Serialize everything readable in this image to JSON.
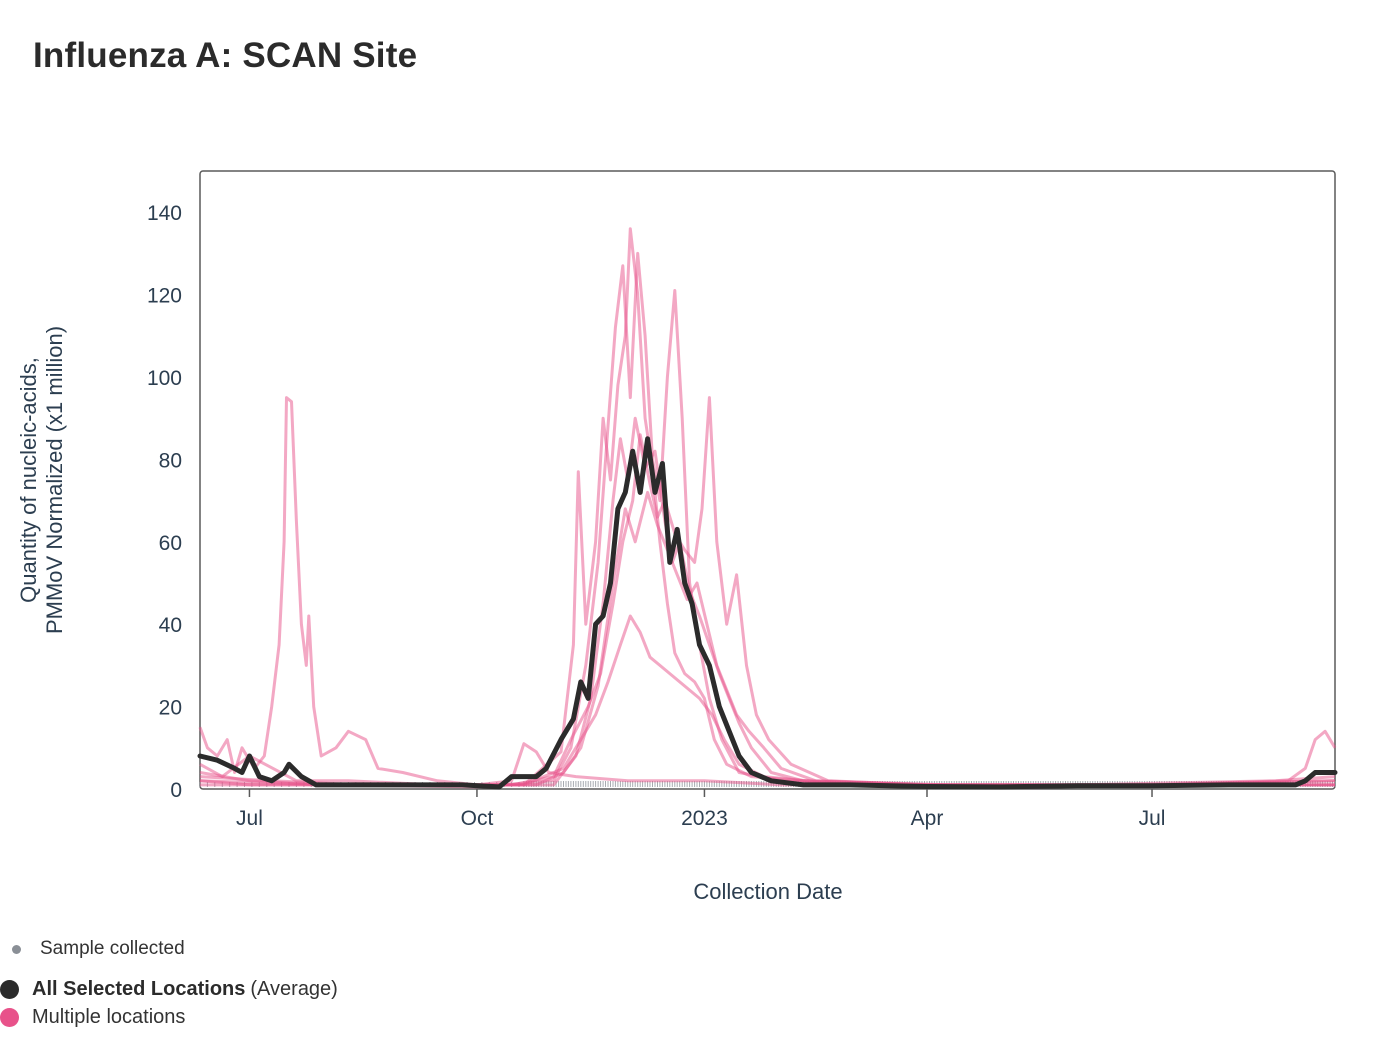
{
  "title": "Influenza A: SCAN Site",
  "legend": {
    "sample_label": "Sample collected",
    "avg_label": "All Selected Locations",
    "avg_suffix": "(Average)",
    "multi_label": "Multiple locations"
  },
  "colors": {
    "average": "#2b2b2b",
    "locations": "#e8528a",
    "sample_marker": "#8a8f96",
    "axis_text": "#2c3e50"
  },
  "chart_data": {
    "type": "line",
    "title": "Influenza A: SCAN Site",
    "xlabel": "Collection Date",
    "ylabel": "Quantity of nucleic-acids, PMMoV Normalized (x1 million)",
    "ylabel_lines": [
      "Quantity of nucleic-acids,",
      "PMMoV Normalized (x1 million)"
    ],
    "xlim": [
      "2022-06-11",
      "2023-09-13"
    ],
    "ylim": [
      0,
      150
    ],
    "yticks": [
      0,
      20,
      40,
      60,
      80,
      100,
      120,
      140
    ],
    "xticks": [
      {
        "date": "2022-07-01",
        "label": "Jul"
      },
      {
        "date": "2022-10-01",
        "label": "Oct"
      },
      {
        "date": "2023-01-01",
        "label": "2023"
      },
      {
        "date": "2023-04-01",
        "label": "Apr"
      },
      {
        "date": "2023-07-01",
        "label": "Jul"
      }
    ],
    "grid": false,
    "legend_position": "bottom-left",
    "series": [
      {
        "name": "All Selected Locations",
        "role": "average",
        "points": [
          [
            "2022-06-11",
            8
          ],
          [
            "2022-06-18",
            7
          ],
          [
            "2022-06-25",
            5
          ],
          [
            "2022-06-28",
            4
          ],
          [
            "2022-07-01",
            8
          ],
          [
            "2022-07-05",
            3
          ],
          [
            "2022-07-10",
            2
          ],
          [
            "2022-07-15",
            4
          ],
          [
            "2022-07-17",
            6
          ],
          [
            "2022-07-22",
            3
          ],
          [
            "2022-07-28",
            1
          ],
          [
            "2022-08-10",
            1
          ],
          [
            "2022-09-01",
            1
          ],
          [
            "2022-09-25",
            1
          ],
          [
            "2022-10-10",
            0.5
          ],
          [
            "2022-10-15",
            3
          ],
          [
            "2022-10-25",
            3
          ],
          [
            "2022-10-29",
            5
          ],
          [
            "2022-11-04",
            12
          ],
          [
            "2022-11-09",
            17
          ],
          [
            "2022-11-12",
            26
          ],
          [
            "2022-11-15",
            22
          ],
          [
            "2022-11-18",
            40
          ],
          [
            "2022-11-21",
            42
          ],
          [
            "2022-11-24",
            50
          ],
          [
            "2022-11-27",
            68
          ],
          [
            "2022-11-30",
            72
          ],
          [
            "2022-12-03",
            82
          ],
          [
            "2022-12-06",
            72
          ],
          [
            "2022-12-09",
            85
          ],
          [
            "2022-12-12",
            72
          ],
          [
            "2022-12-15",
            79
          ],
          [
            "2022-12-18",
            55
          ],
          [
            "2022-12-21",
            63
          ],
          [
            "2022-12-24",
            50
          ],
          [
            "2022-12-27",
            45
          ],
          [
            "2022-12-30",
            35
          ],
          [
            "2023-01-03",
            30
          ],
          [
            "2023-01-07",
            20
          ],
          [
            "2023-01-11",
            14
          ],
          [
            "2023-01-15",
            8
          ],
          [
            "2023-01-20",
            4
          ],
          [
            "2023-01-28",
            2
          ],
          [
            "2023-02-10",
            1
          ],
          [
            "2023-03-01",
            1
          ],
          [
            "2023-04-01",
            0.6
          ],
          [
            "2023-05-01",
            0.5
          ],
          [
            "2023-06-01",
            0.8
          ],
          [
            "2023-07-01",
            0.8
          ],
          [
            "2023-08-01",
            1
          ],
          [
            "2023-08-28",
            1
          ],
          [
            "2023-09-01",
            2
          ],
          [
            "2023-09-05",
            4
          ],
          [
            "2023-09-13",
            4
          ]
        ]
      },
      {
        "role": "location",
        "points": [
          [
            "2022-06-11",
            15
          ],
          [
            "2022-06-14",
            10
          ],
          [
            "2022-06-18",
            8
          ],
          [
            "2022-06-22",
            12
          ],
          [
            "2022-06-25",
            4
          ],
          [
            "2022-06-28",
            10
          ],
          [
            "2022-07-03",
            5
          ],
          [
            "2022-07-07",
            8
          ],
          [
            "2022-07-10",
            20
          ],
          [
            "2022-07-13",
            35
          ],
          [
            "2022-07-15",
            60
          ],
          [
            "2022-07-16",
            95
          ],
          [
            "2022-07-18",
            94
          ],
          [
            "2022-07-20",
            65
          ],
          [
            "2022-07-22",
            40
          ],
          [
            "2022-07-24",
            30
          ],
          [
            "2022-07-25",
            42
          ],
          [
            "2022-07-27",
            20
          ],
          [
            "2022-07-30",
            8
          ],
          [
            "2022-08-05",
            10
          ],
          [
            "2022-08-10",
            14
          ],
          [
            "2022-08-17",
            12
          ],
          [
            "2022-08-22",
            5
          ],
          [
            "2022-09-01",
            4
          ],
          [
            "2022-09-15",
            2
          ],
          [
            "2022-10-01",
            1
          ],
          [
            "2022-10-15",
            2
          ],
          [
            "2022-10-20",
            11
          ],
          [
            "2022-10-25",
            9
          ],
          [
            "2022-10-30",
            4
          ],
          [
            "2022-11-10",
            3
          ],
          [
            "2022-12-01",
            2
          ],
          [
            "2023-01-01",
            2
          ],
          [
            "2023-02-01",
            1
          ],
          [
            "2023-04-01",
            1
          ],
          [
            "2023-07-01",
            1
          ],
          [
            "2023-08-25",
            2
          ],
          [
            "2023-09-01",
            5
          ],
          [
            "2023-09-05",
            12
          ],
          [
            "2023-09-09",
            14
          ],
          [
            "2023-09-13",
            10
          ]
        ]
      },
      {
        "role": "location",
        "points": [
          [
            "2022-06-11",
            6
          ],
          [
            "2022-06-20",
            3
          ],
          [
            "2022-07-01",
            8
          ],
          [
            "2022-07-20",
            2
          ],
          [
            "2022-08-10",
            2
          ],
          [
            "2022-09-15",
            1
          ],
          [
            "2022-10-20",
            1
          ],
          [
            "2022-11-04",
            9
          ],
          [
            "2022-11-09",
            35
          ],
          [
            "2022-11-11",
            77
          ],
          [
            "2022-11-14",
            40
          ],
          [
            "2022-11-18",
            60
          ],
          [
            "2022-11-21",
            90
          ],
          [
            "2022-11-24",
            75
          ],
          [
            "2022-11-27",
            98
          ],
          [
            "2022-11-30",
            110
          ],
          [
            "2022-12-02",
            136
          ],
          [
            "2022-12-05",
            120
          ],
          [
            "2022-12-08",
            90
          ],
          [
            "2022-12-11",
            78
          ],
          [
            "2022-12-14",
            60
          ],
          [
            "2022-12-17",
            45
          ],
          [
            "2022-12-20",
            33
          ],
          [
            "2022-12-24",
            28
          ],
          [
            "2022-12-28",
            26
          ],
          [
            "2023-01-01",
            22
          ],
          [
            "2023-01-05",
            12
          ],
          [
            "2023-01-10",
            6
          ],
          [
            "2023-01-20",
            3
          ],
          [
            "2023-02-10",
            2
          ],
          [
            "2023-04-01",
            1
          ],
          [
            "2023-07-01",
            1
          ],
          [
            "2023-09-13",
            2
          ]
        ]
      },
      {
        "role": "location",
        "points": [
          [
            "2022-06-11",
            4
          ],
          [
            "2022-07-01",
            2
          ],
          [
            "2022-08-01",
            1
          ],
          [
            "2022-10-01",
            0.5
          ],
          [
            "2022-11-01",
            2
          ],
          [
            "2022-11-08",
            10
          ],
          [
            "2022-11-14",
            30
          ],
          [
            "2022-11-19",
            55
          ],
          [
            "2022-11-23",
            88
          ],
          [
            "2022-11-26",
            112
          ],
          [
            "2022-11-29",
            127
          ],
          [
            "2022-12-02",
            95
          ],
          [
            "2022-12-05",
            130
          ],
          [
            "2022-12-08",
            110
          ],
          [
            "2022-12-11",
            80
          ],
          [
            "2022-12-14",
            70
          ],
          [
            "2022-12-17",
            100
          ],
          [
            "2022-12-20",
            121
          ],
          [
            "2022-12-23",
            90
          ],
          [
            "2022-12-26",
            50
          ],
          [
            "2022-12-30",
            35
          ],
          [
            "2023-01-03",
            22
          ],
          [
            "2023-01-08",
            12
          ],
          [
            "2023-01-15",
            4
          ],
          [
            "2023-02-01",
            2
          ],
          [
            "2023-03-01",
            1
          ],
          [
            "2023-06-01",
            1
          ],
          [
            "2023-08-20",
            2
          ],
          [
            "2023-09-13",
            3
          ]
        ]
      },
      {
        "role": "location",
        "points": [
          [
            "2022-06-11",
            3
          ],
          [
            "2022-07-10",
            2
          ],
          [
            "2022-08-15",
            1
          ],
          [
            "2022-10-15",
            1
          ],
          [
            "2022-11-01",
            3
          ],
          [
            "2022-11-08",
            12
          ],
          [
            "2022-11-15",
            20
          ],
          [
            "2022-11-20",
            28
          ],
          [
            "2022-11-25",
            45
          ],
          [
            "2022-11-29",
            60
          ],
          [
            "2022-12-03",
            70
          ],
          [
            "2022-12-06",
            86
          ],
          [
            "2022-12-10",
            74
          ],
          [
            "2022-12-13",
            66
          ],
          [
            "2022-12-16",
            70
          ],
          [
            "2022-12-20",
            62
          ],
          [
            "2022-12-24",
            58
          ],
          [
            "2022-12-28",
            55
          ],
          [
            "2022-12-31",
            68
          ],
          [
            "2023-01-03",
            95
          ],
          [
            "2023-01-06",
            60
          ],
          [
            "2023-01-10",
            40
          ],
          [
            "2023-01-14",
            52
          ],
          [
            "2023-01-18",
            30
          ],
          [
            "2023-01-22",
            18
          ],
          [
            "2023-01-27",
            12
          ],
          [
            "2023-02-05",
            6
          ],
          [
            "2023-02-20",
            2
          ],
          [
            "2023-04-01",
            1
          ],
          [
            "2023-07-01",
            1
          ],
          [
            "2023-09-13",
            2
          ]
        ]
      },
      {
        "role": "location",
        "points": [
          [
            "2022-06-11",
            2
          ],
          [
            "2022-08-01",
            1
          ],
          [
            "2022-10-20",
            1
          ],
          [
            "2022-11-05",
            5
          ],
          [
            "2022-11-12",
            12
          ],
          [
            "2022-11-18",
            18
          ],
          [
            "2022-11-23",
            26
          ],
          [
            "2022-11-28",
            35
          ],
          [
            "2022-12-02",
            42
          ],
          [
            "2022-12-06",
            38
          ],
          [
            "2022-12-10",
            32
          ],
          [
            "2022-12-14",
            30
          ],
          [
            "2022-12-18",
            28
          ],
          [
            "2022-12-22",
            26
          ],
          [
            "2022-12-26",
            24
          ],
          [
            "2022-12-30",
            22
          ],
          [
            "2023-01-04",
            18
          ],
          [
            "2023-01-09",
            12
          ],
          [
            "2023-01-15",
            6
          ],
          [
            "2023-01-25",
            3
          ],
          [
            "2023-03-01",
            1
          ],
          [
            "2023-06-01",
            1
          ],
          [
            "2023-09-13",
            1
          ]
        ]
      },
      {
        "role": "location",
        "points": [
          [
            "2022-06-11",
            1
          ],
          [
            "2022-09-01",
            1
          ],
          [
            "2022-11-01",
            1
          ],
          [
            "2022-11-10",
            8
          ],
          [
            "2022-11-16",
            22
          ],
          [
            "2022-11-21",
            45
          ],
          [
            "2022-11-25",
            70
          ],
          [
            "2022-11-28",
            85
          ],
          [
            "2022-12-01",
            75
          ],
          [
            "2022-12-04",
            90
          ],
          [
            "2022-12-08",
            78
          ],
          [
            "2022-12-12",
            82
          ],
          [
            "2022-12-16",
            65
          ],
          [
            "2022-12-19",
            55
          ],
          [
            "2022-12-22",
            60
          ],
          [
            "2022-12-26",
            48
          ],
          [
            "2022-12-30",
            42
          ],
          [
            "2023-01-03",
            35
          ],
          [
            "2023-01-07",
            28
          ],
          [
            "2023-01-11",
            22
          ],
          [
            "2023-01-15",
            16
          ],
          [
            "2023-01-20",
            10
          ],
          [
            "2023-01-28",
            4
          ],
          [
            "2023-02-10",
            2
          ],
          [
            "2023-04-01",
            1
          ],
          [
            "2023-09-13",
            1
          ]
        ]
      },
      {
        "role": "location",
        "points": [
          [
            "2022-06-11",
            2
          ],
          [
            "2022-07-01",
            1
          ],
          [
            "2022-10-25",
            1
          ],
          [
            "2022-11-05",
            4
          ],
          [
            "2022-11-12",
            10
          ],
          [
            "2022-11-19",
            25
          ],
          [
            "2022-11-25",
            50
          ],
          [
            "2022-11-30",
            68
          ],
          [
            "2022-12-04",
            60
          ],
          [
            "2022-12-09",
            72
          ],
          [
            "2022-12-13",
            64
          ],
          [
            "2022-12-17",
            58
          ],
          [
            "2022-12-21",
            52
          ],
          [
            "2022-12-25",
            46
          ],
          [
            "2022-12-29",
            50
          ],
          [
            "2023-01-02",
            40
          ],
          [
            "2023-01-06",
            30
          ],
          [
            "2023-01-10",
            24
          ],
          [
            "2023-01-14",
            18
          ],
          [
            "2023-01-19",
            14
          ],
          [
            "2023-01-25",
            10
          ],
          [
            "2023-02-01",
            5
          ],
          [
            "2023-02-15",
            2
          ],
          [
            "2023-04-10",
            1
          ],
          [
            "2023-09-13",
            1
          ]
        ]
      }
    ]
  }
}
